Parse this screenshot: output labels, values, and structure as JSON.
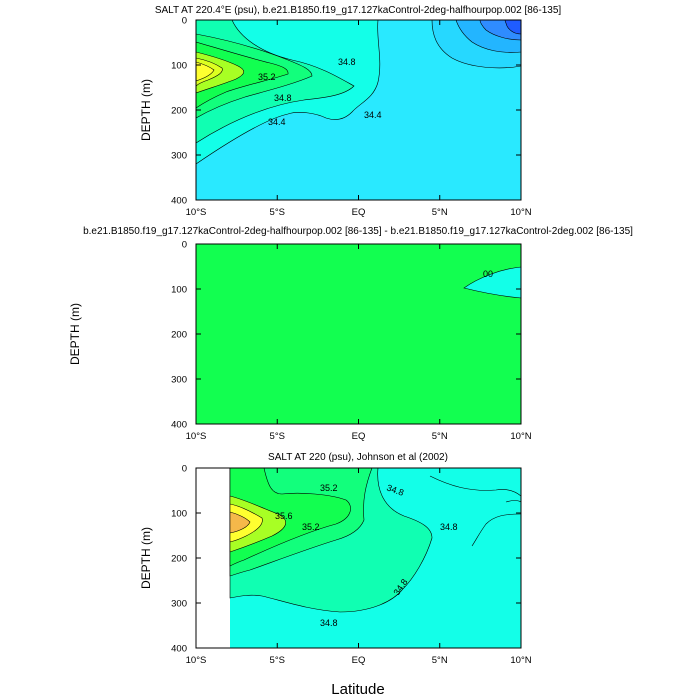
{
  "figure": {
    "xlabel": "Latitude"
  },
  "colors": {
    "deep_blue": "#1f5cff",
    "blue": "#2f8cff",
    "light_blue": "#23b5ff",
    "sky": "#26d8ff",
    "cyan": "#29e9ff",
    "aqua": "#13ffe8",
    "sea_green": "#10ffb2",
    "light_green": "#12ff7c",
    "green": "#12ff50",
    "lime": "#a8ff24",
    "yellow_green": "#ddff20",
    "yellow": "#ffff30",
    "orange": "#f5b84a",
    "contour": "#000000"
  },
  "chart_data": [
    {
      "type": "heatmap",
      "title": "SALT AT 220.4°E (psu), b.e21.B1850.f19_g17.127kaControl-2deg-halfhourpop.002 [86-135]",
      "ylabel": "DEPTH (m)",
      "xlim": [
        -10,
        10
      ],
      "ylim": [
        400,
        0
      ],
      "x_ticks": [
        "10°S",
        "5°S",
        "EQ",
        "5°N",
        "10°N"
      ],
      "y_ticks": [
        "0",
        "100",
        "200",
        "300",
        "400"
      ],
      "contour_labels": [
        "35.2",
        "34.8",
        "34.8",
        "34.4",
        "34.4"
      ]
    },
    {
      "type": "heatmap",
      "title": "b.e21.B1850.f19_g17.127kaControl-2deg-halfhourpop.002 [86-135] - b.e21.B1850.f19_g17.127kaControl-2deg.002 [86-135]",
      "ylabel": "DEPTH (m)",
      "xlim": [
        -10,
        10
      ],
      "ylim": [
        400,
        0
      ],
      "x_ticks": [
        "10°S",
        "5°S",
        "EQ",
        "5°N",
        "10°N"
      ],
      "y_ticks": [
        "0",
        "100",
        "200",
        "300",
        "400"
      ],
      "contour_labels": [
        "00"
      ]
    },
    {
      "type": "heatmap",
      "title": "SALT AT 220 (psu), Johnson et al (2002)",
      "ylabel": "DEPTH (m)",
      "xlim": [
        -10,
        10
      ],
      "ylim": [
        400,
        0
      ],
      "x_ticks": [
        "10°S",
        "5°S",
        "EQ",
        "5°N",
        "10°N"
      ],
      "y_ticks": [
        "0",
        "100",
        "200",
        "300",
        "400"
      ],
      "contour_labels": [
        "35.2",
        "34.8",
        "35.6",
        "35.2",
        "34.8",
        "34.8",
        "34.8"
      ]
    }
  ]
}
